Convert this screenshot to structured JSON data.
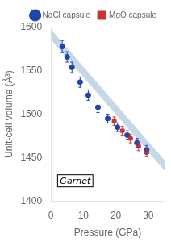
{
  "chart_data": {
    "type": "scatter",
    "xlabel": "Pressure (GPa)",
    "ylabel": "Unit-cell volume (Å³)",
    "xlim": [
      0,
      35
    ],
    "xticks": [
      0,
      10,
      20,
      30
    ],
    "ylim": [
      1400,
      1600
    ],
    "yticks": [
      1400,
      1450,
      1500,
      1550,
      1600
    ],
    "grid": false,
    "legend": "upper right",
    "annotations": [
      "Garnet"
    ],
    "series": [
      {
        "name": "NaCl capsule",
        "color": "#2244aa",
        "marker": "circle",
        "x": [
          3.5,
          5.0,
          6.5,
          9.0,
          11.5,
          14.5,
          17.5,
          20.5,
          23.5,
          26.5,
          29.5
        ],
        "values": [
          1578,
          1566,
          1554,
          1537,
          1522,
          1508,
          1495,
          1485,
          1476,
          1467,
          1459
        ],
        "x_err": [
          0.6,
          0.6,
          0.6,
          0.6,
          0.6,
          0.6,
          0.6,
          0.6,
          0.6,
          0.6,
          0.6
        ],
        "y_err": [
          7,
          6,
          6,
          6,
          6,
          6,
          5,
          5,
          5,
          5,
          5
        ]
      },
      {
        "name": "MgO capsule",
        "color": "#cc3333",
        "marker": "square",
        "x": [
          19.5,
          22.0,
          24.5,
          27.0,
          29.5
        ],
        "values": [
          1492,
          1481,
          1472,
          1463,
          1456
        ],
        "x_err": [
          0.6,
          0.6,
          0.6,
          0.6,
          0.6
        ],
        "y_err": [
          5,
          5,
          5,
          5,
          5
        ]
      }
    ],
    "band": {
      "color": "#c5d8e8",
      "x": [
        0,
        35
      ],
      "lower": [
        1586,
        1435
      ],
      "upper": [
        1598,
        1447
      ]
    }
  }
}
